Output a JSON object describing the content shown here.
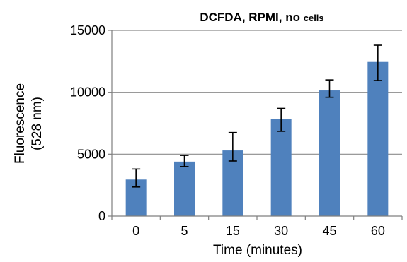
{
  "chart_data": {
    "type": "bar",
    "title": "DCFDA, RPMI, no",
    "title_small": "cells",
    "xlabel": "Time (minutes)",
    "ylabel_line1": "Fluorescence",
    "ylabel_line2": "(528 nm)",
    "categories": [
      "0",
      "5",
      "15",
      "30",
      "45",
      "60"
    ],
    "values": [
      2950,
      4400,
      5300,
      7850,
      10150,
      12450
    ],
    "error_low": [
      2350,
      4000,
      4450,
      6850,
      9600,
      10950
    ],
    "error_high": [
      3800,
      4900,
      6750,
      8700,
      11000,
      13800
    ],
    "ylim": [
      0,
      15000
    ],
    "yticks": [
      0,
      5000,
      10000,
      15000
    ],
    "grid": true,
    "bar_color": "#4f81bd",
    "grid_color": "#8c8c8c"
  }
}
